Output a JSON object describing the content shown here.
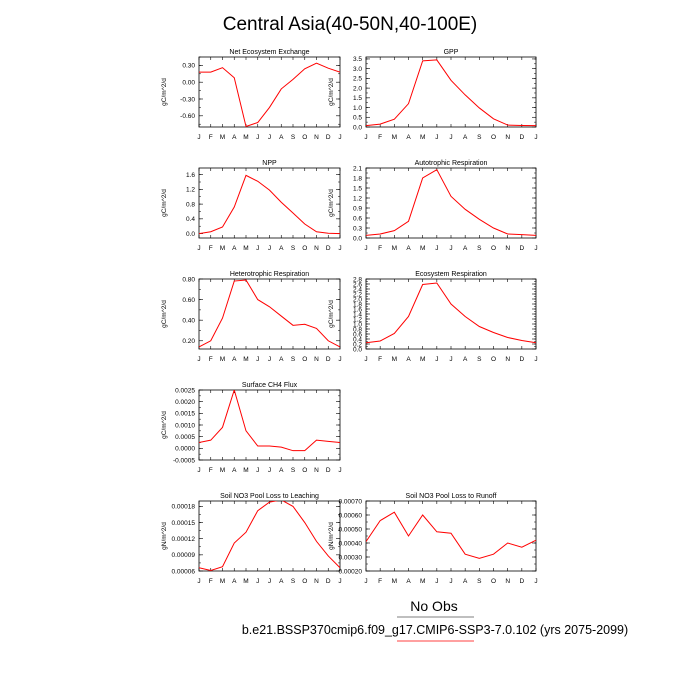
{
  "title": "Central Asia(40-50N,40-100E)",
  "legend": {
    "obs_label": "No Obs",
    "case_label": "b.e21.BSSP370cmip6.f09_g17.CMIP6-SSP3-7.0.102 (yrs 2075-2099)",
    "case_color": "#ff0000"
  },
  "chart_data": [
    {
      "type": "line",
      "title": "Net Ecosystem Exchange",
      "ylabel": "gC/m^2/d",
      "categories": [
        "J",
        "F",
        "M",
        "A",
        "M",
        "J",
        "J",
        "A",
        "S",
        "O",
        "N",
        "D",
        "J"
      ],
      "ylim": [
        -0.8,
        0.45
      ],
      "yticks": [
        -0.6,
        -0.3,
        0.0,
        0.3
      ],
      "ytick_labels": [
        "-0.60",
        "-0.30",
        "0.00",
        "0.30"
      ],
      "series": [
        {
          "color": "#ff0000",
          "values": [
            0.18,
            0.18,
            0.26,
            0.08,
            -0.79,
            -0.72,
            -0.45,
            -0.12,
            0.05,
            0.24,
            0.34,
            0.25,
            0.18
          ]
        }
      ]
    },
    {
      "type": "line",
      "title": "GPP",
      "ylabel": "gC/m^2/d",
      "categories": [
        "J",
        "F",
        "M",
        "A",
        "M",
        "J",
        "J",
        "A",
        "S",
        "O",
        "N",
        "D",
        "J"
      ],
      "ylim": [
        0.0,
        3.6
      ],
      "yticks": [
        0.0,
        0.5,
        1.0,
        1.5,
        2.0,
        2.5,
        3.0,
        3.5
      ],
      "ytick_labels": [
        "0.0",
        "0.5",
        "1.0",
        "1.5",
        "2.0",
        "2.5",
        "3.0",
        "3.5"
      ],
      "series": [
        {
          "color": "#ff0000",
          "values": [
            0.07,
            0.15,
            0.4,
            1.2,
            3.4,
            3.45,
            2.4,
            1.65,
            0.98,
            0.42,
            0.1,
            0.08,
            0.07
          ]
        }
      ]
    },
    {
      "type": "line",
      "title": "NPP",
      "ylabel": "gC/m^2/d",
      "categories": [
        "J",
        "F",
        "M",
        "A",
        "M",
        "J",
        "J",
        "A",
        "S",
        "O",
        "N",
        "D",
        "J"
      ],
      "ylim": [
        -0.12,
        1.78
      ],
      "yticks": [
        0.0,
        0.4,
        0.8,
        1.2,
        1.6
      ],
      "ytick_labels": [
        "0.0",
        "0.4",
        "0.8",
        "1.2",
        "1.6"
      ],
      "series": [
        {
          "color": "#ff0000",
          "values": [
            0.0,
            0.05,
            0.18,
            0.72,
            1.58,
            1.42,
            1.18,
            0.85,
            0.56,
            0.26,
            0.05,
            0.01,
            0.0
          ]
        }
      ]
    },
    {
      "type": "line",
      "title": "Autotrophic Respiration",
      "ylabel": "gC/m^2/d",
      "categories": [
        "J",
        "F",
        "M",
        "A",
        "M",
        "J",
        "J",
        "A",
        "S",
        "O",
        "N",
        "D",
        "J"
      ],
      "ylim": [
        0.0,
        2.1
      ],
      "yticks": [
        0.0,
        0.3,
        0.6,
        0.9,
        1.2,
        1.5,
        1.8,
        2.1
      ],
      "ytick_labels": [
        "0.0",
        "0.3",
        "0.6",
        "0.9",
        "1.2",
        "1.5",
        "1.8",
        "2.1"
      ],
      "series": [
        {
          "color": "#ff0000",
          "values": [
            0.08,
            0.12,
            0.22,
            0.5,
            1.8,
            2.05,
            1.25,
            0.86,
            0.56,
            0.3,
            0.12,
            0.1,
            0.08
          ]
        }
      ]
    },
    {
      "type": "line",
      "title": "Heterotrophic Respiration",
      "ylabel": "gC/m^2/d",
      "categories": [
        "J",
        "F",
        "M",
        "A",
        "M",
        "J",
        "J",
        "A",
        "S",
        "O",
        "N",
        "D",
        "J"
      ],
      "ylim": [
        0.12,
        0.8
      ],
      "yticks": [
        0.2,
        0.4,
        0.6,
        0.8
      ],
      "ytick_labels": [
        "0.20",
        "0.40",
        "0.60",
        "0.80"
      ],
      "series": [
        {
          "color": "#ff0000",
          "values": [
            0.14,
            0.2,
            0.42,
            0.78,
            0.79,
            0.6,
            0.53,
            0.44,
            0.35,
            0.36,
            0.32,
            0.2,
            0.14
          ]
        }
      ]
    },
    {
      "type": "line",
      "title": "Ecosystem Respiration",
      "ylabel": "gC/m^2/d",
      "categories": [
        "J",
        "F",
        "M",
        "A",
        "M",
        "J",
        "J",
        "A",
        "S",
        "O",
        "N",
        "D",
        "J"
      ],
      "ylim": [
        0.0,
        2.8
      ],
      "yticks": [
        0.0,
        0.2,
        0.4,
        0.6,
        0.8,
        1.0,
        1.2,
        1.4,
        1.6,
        1.8,
        2.0,
        2.2,
        2.4,
        2.6,
        2.8
      ],
      "ytick_labels": [
        "0.0",
        "0.2",
        "0.4",
        "0.6",
        "0.8",
        "1.0",
        "1.2",
        "1.4",
        "1.6",
        "1.8",
        "2.0",
        "2.2",
        "2.4",
        "2.6",
        "2.8"
      ],
      "series": [
        {
          "color": "#ff0000",
          "values": [
            0.25,
            0.32,
            0.62,
            1.3,
            2.58,
            2.64,
            1.8,
            1.3,
            0.9,
            0.66,
            0.46,
            0.34,
            0.25
          ]
        }
      ]
    },
    {
      "type": "line",
      "title": "Surface CH4 Flux",
      "ylabel": "gC/m^2/d",
      "categories": [
        "J",
        "F",
        "M",
        "A",
        "M",
        "J",
        "J",
        "A",
        "S",
        "O",
        "N",
        "D",
        "J"
      ],
      "ylim": [
        -0.0005,
        0.0025
      ],
      "yticks": [
        -0.0005,
        0.0,
        0.0005,
        0.001,
        0.0015,
        0.002,
        0.0025
      ],
      "ytick_labels": [
        "-0.0005",
        "0.0000",
        "0.0005",
        "0.0010",
        "0.0015",
        "0.0020",
        "0.0025"
      ],
      "series": [
        {
          "color": "#ff0000",
          "values": [
            0.00025,
            0.00035,
            0.0009,
            0.0025,
            0.00075,
            0.0001,
            0.0001,
            5e-05,
            -0.0001,
            -0.0001,
            0.00035,
            0.0003,
            0.00025
          ]
        }
      ]
    },
    {
      "type": "line",
      "title": "Soil NO3 Pool Loss to Leaching",
      "ylabel": "gN/m^2/d",
      "categories": [
        "J",
        "F",
        "M",
        "A",
        "M",
        "J",
        "J",
        "A",
        "S",
        "O",
        "N",
        "D",
        "J"
      ],
      "ylim": [
        6e-05,
        0.00019
      ],
      "yticks": [
        6e-05,
        9e-05,
        0.00012,
        0.00015,
        0.00018
      ],
      "ytick_labels": [
        "0.00006",
        "0.00009",
        "0.00012",
        "0.00015",
        "0.00018"
      ],
      "series": [
        {
          "color": "#ff0000",
          "values": [
            6.6e-05,
            6.1e-05,
            6.8e-05,
            0.000112,
            0.000132,
            0.000172,
            0.000188,
            0.000192,
            0.00018,
            0.00015,
            0.000115,
            8.8e-05,
            6.6e-05
          ]
        }
      ]
    },
    {
      "type": "line",
      "title": "Soil NO3 Pool Loss to Runoff",
      "ylabel": "gN/m^2/d",
      "categories": [
        "J",
        "F",
        "M",
        "A",
        "M",
        "J",
        "J",
        "A",
        "S",
        "O",
        "N",
        "D",
        "J"
      ],
      "ylim": [
        0.0002,
        0.0007
      ],
      "yticks": [
        0.0002,
        0.0003,
        0.0004,
        0.0005,
        0.0006,
        0.0007
      ],
      "ytick_labels": [
        "0.00020",
        "0.00030",
        "0.00040",
        "0.00050",
        "0.00060",
        "0.00070"
      ],
      "series": [
        {
          "color": "#ff0000",
          "values": [
            0.00041,
            0.00056,
            0.00062,
            0.00045,
            0.0006,
            0.00048,
            0.00047,
            0.00032,
            0.00029,
            0.00032,
            0.0004,
            0.00037,
            0.00042
          ]
        }
      ]
    }
  ]
}
